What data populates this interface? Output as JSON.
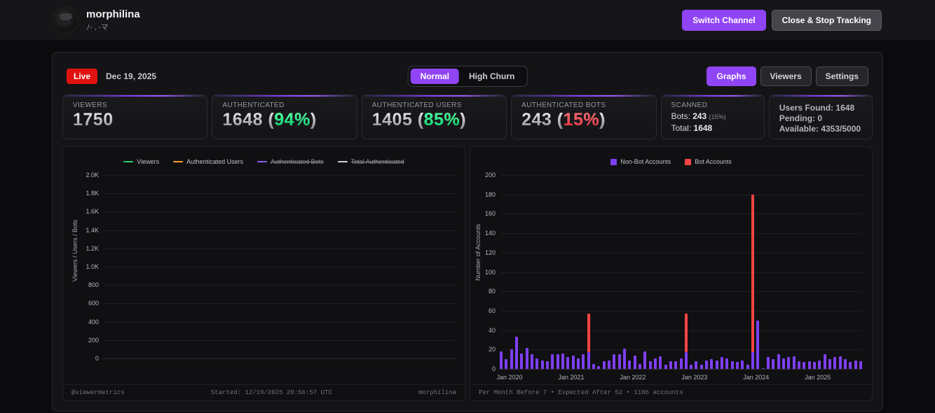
{
  "header": {
    "username": "morphilina",
    "subtitle": "ﾉ- , -マ",
    "switch_channel_label": "Switch Channel",
    "close_stop_label": "Close & Stop Tracking"
  },
  "toolbar": {
    "live_label": "Live",
    "date": "Dec 19, 2025",
    "mode_normal": "Normal",
    "mode_high_churn": "High Churn",
    "tab_graphs": "Graphs",
    "tab_viewers": "Viewers",
    "tab_settings": "Settings"
  },
  "punct": {
    "lparen": "(",
    "rparen": ")"
  },
  "stats": {
    "viewers": {
      "label": "VIEWERS",
      "value": "1750"
    },
    "authenticated": {
      "label": "AUTHENTICATED",
      "value": "1648",
      "pct": "94%"
    },
    "authenticated_users": {
      "label": "AUTHENTICATED USERS",
      "value": "1405",
      "pct": "85%"
    },
    "authenticated_bots": {
      "label": "AUTHENTICATED BOTS",
      "value": "243",
      "pct": "15%"
    },
    "scanned": {
      "label": "SCANNED",
      "bots_label": "Bots:",
      "bots_value": "243",
      "bots_pct": "(15%)",
      "total_label": "Total:",
      "total_value": "1648"
    },
    "summary": {
      "lines": [
        "Users Found: 1648",
        "Pending: 0",
        "Available: 4353/5000"
      ]
    }
  },
  "left_chart_footer": {
    "left": "@viewermetrics",
    "center": "Started: 12/19/2025 20:56:57 UTC",
    "right": "morphilina"
  },
  "right_chart_footer": "Per Month Before 7 • Expected After 52 • 1186 accounts",
  "colors": {
    "accent_purple": "#8f45f5",
    "live_red": "#e01210",
    "green": "#00e97e",
    "red_pct": "#fb3b4e",
    "bar_purple": "#7e3ff2",
    "bar_red": "#f64444"
  },
  "chart_data": [
    {
      "type": "line",
      "ylabel": "Viewers / Users / Bots",
      "yticks": [
        "2.0K",
        "1.8K",
        "1.6K",
        "1.4K",
        "1.2K",
        "1.0K",
        "800",
        "600",
        "400",
        "200",
        "0"
      ],
      "ylim": [
        0,
        2000
      ],
      "legend_position": "top",
      "grid": true,
      "series": [
        {
          "name": "Viewers",
          "color": "#2ecc71",
          "enabled": true,
          "values": []
        },
        {
          "name": "Authenticated Users",
          "color": "#f5a623",
          "enabled": true,
          "values": []
        },
        {
          "name": "Authenticated Bots",
          "color": "#8b5cf6",
          "enabled": false,
          "values": []
        },
        {
          "name": "Total Authenticated",
          "color": "#d1d5db",
          "enabled": false,
          "values": []
        }
      ]
    },
    {
      "type": "bar",
      "stacked": true,
      "ylabel": "Number of Accounts",
      "ylim": [
        0,
        200
      ],
      "ytick_step": 20,
      "grid": true,
      "legend_position": "top",
      "x_start": "Jan 2020",
      "x_tick_labels": [
        "Jan 2020",
        "Jan 2021",
        "Jan 2022",
        "Jan 2023",
        "Jan 2024",
        "Jan 2025"
      ],
      "x_tick_month_index": [
        0,
        12,
        24,
        36,
        48,
        60
      ],
      "series": [
        {
          "name": "Non-Bot Accounts",
          "color": "#7e3ff2",
          "values": [
            18,
            10,
            20,
            33,
            16,
            22,
            15,
            11,
            9,
            8,
            15,
            15,
            16,
            12,
            14,
            11,
            15,
            17,
            5,
            3,
            8,
            9,
            15,
            15,
            21,
            9,
            14,
            5,
            18,
            8,
            11,
            13,
            4,
            8,
            8,
            11,
            17,
            4,
            8,
            4,
            9,
            10,
            9,
            12,
            11,
            8,
            7,
            9,
            4,
            17,
            50,
            1,
            12,
            10,
            15,
            11,
            12,
            13,
            8,
            7,
            8,
            7,
            9,
            15,
            10,
            12,
            13,
            10,
            7,
            9,
            8
          ]
        },
        {
          "name": "Bot Accounts",
          "color": "#f64444",
          "values": [
            0,
            0,
            0,
            0,
            0,
            0,
            0,
            0,
            0,
            0,
            0,
            0,
            0,
            0,
            0,
            0,
            0,
            40,
            0,
            0,
            0,
            0,
            0,
            0,
            0,
            0,
            0,
            0,
            0,
            0,
            0,
            0,
            0,
            0,
            0,
            0,
            40,
            0,
            0,
            0,
            0,
            0,
            0,
            0,
            0,
            0,
            0,
            0,
            0,
            163,
            0,
            0,
            0,
            0,
            0,
            0,
            0,
            0,
            0,
            0,
            0,
            0,
            0,
            0,
            0,
            0,
            0,
            0,
            0,
            0,
            0
          ]
        }
      ]
    }
  ]
}
